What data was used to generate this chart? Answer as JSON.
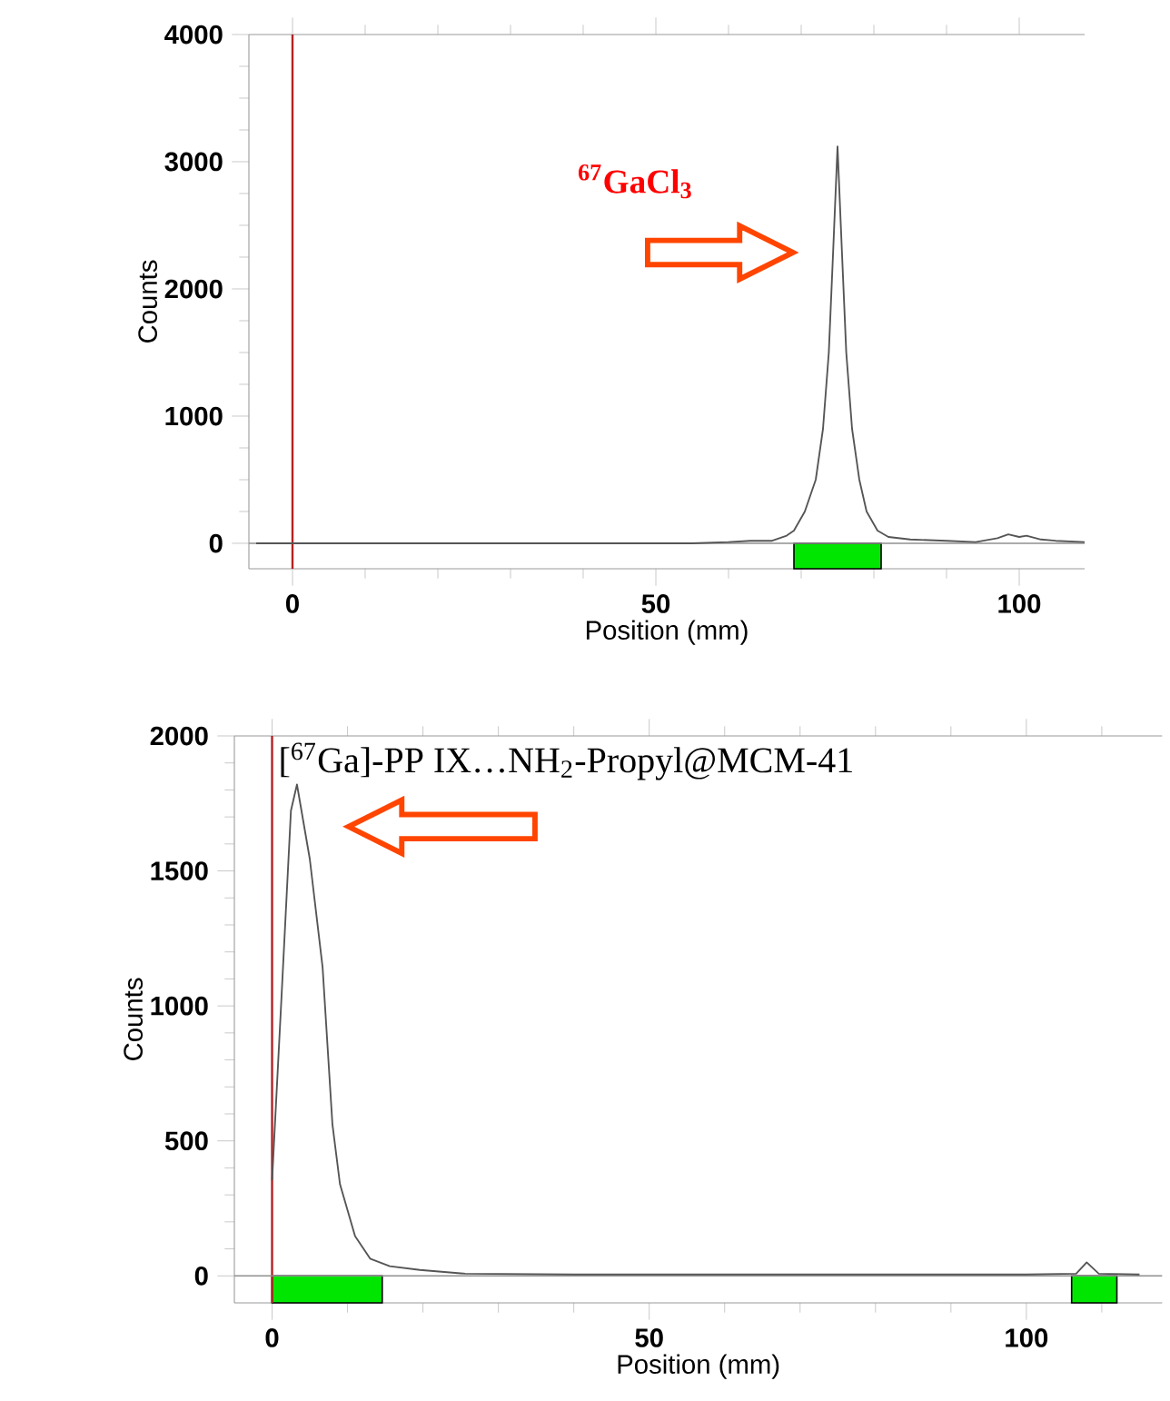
{
  "chart_data": [
    {
      "type": "line",
      "xlabel": "Position (mm)",
      "ylabel": "Counts",
      "annotations": [
        "$^{67}$GaCl$_{3}$"
      ],
      "xlim": [
        -6,
        109
      ],
      "ylim": [
        -200,
        4000
      ],
      "xticks": [
        0,
        {
          "value": 10,
          "label": null
        },
        {
          "value": 20,
          "label": null
        },
        {
          "value": 30,
          "label": null
        },
        {
          "value": 40,
          "label": null
        },
        50,
        {
          "value": 60,
          "label": null
        },
        {
          "value": 70,
          "label": null
        },
        {
          "value": 80,
          "label": null
        },
        {
          "value": 90,
          "label": null
        },
        100
      ],
      "yticks": [
        0,
        {
          "value": 250,
          "label": null
        },
        {
          "value": 500,
          "label": null
        },
        {
          "value": 750,
          "label": null
        },
        1000,
        {
          "value": 1250,
          "label": null
        },
        {
          "value": 1500,
          "label": null
        },
        {
          "value": 1750,
          "label": null
        },
        2000,
        {
          "value": 2250,
          "label": null
        },
        {
          "value": 2500,
          "label": null
        },
        {
          "value": 2750,
          "label": null
        },
        3000,
        {
          "value": 3250,
          "label": null
        },
        {
          "value": 3500,
          "label": null
        },
        {
          "value": 3750,
          "label": null
        },
        4000
      ],
      "color": "#555555",
      "x": [
        -5,
        0,
        10,
        20,
        30,
        40,
        50,
        55,
        60,
        63,
        66,
        68,
        69,
        70.5,
        72,
        73,
        73.8,
        74.4,
        75,
        75.6,
        76.2,
        77,
        78,
        79,
        80.5,
        82,
        85,
        90,
        94,
        97,
        98.5,
        100,
        101,
        103,
        105,
        109
      ],
      "values": [
        0,
        0,
        0,
        0,
        0,
        0,
        0,
        0,
        10,
        20,
        20,
        60,
        100,
        250,
        500,
        900,
        1500,
        2300,
        3120,
        2300,
        1500,
        900,
        500,
        250,
        100,
        50,
        30,
        20,
        10,
        40,
        70,
        50,
        60,
        30,
        20,
        10
      ],
      "ref_lines": [
        {
          "axis": "x",
          "value": 0,
          "color": "#b22222"
        },
        {
          "axis": "y",
          "value": 0,
          "color": "#909090"
        }
      ],
      "bands": [
        {
          "axis": "x",
          "from": 69,
          "to": 81,
          "color": "#00e600"
        }
      ]
    },
    {
      "type": "line",
      "xlabel": "Position (mm)",
      "ylabel": "Counts",
      "annotations": [
        "[$^{67}$Ga]-PP IX…NH$_{2}$-Propyl@MCM-41"
      ],
      "xlim": [
        -5,
        118
      ],
      "ylim": [
        -100,
        2000
      ],
      "xticks": [
        0,
        {
          "value": 10,
          "label": null
        },
        {
          "value": 20,
          "label": null
        },
        {
          "value": 30,
          "label": null
        },
        {
          "value": 40,
          "label": null
        },
        50,
        {
          "value": 60,
          "label": null
        },
        {
          "value": 70,
          "label": null
        },
        {
          "value": 80,
          "label": null
        },
        {
          "value": 90,
          "label": null
        },
        100,
        {
          "value": 110,
          "label": null
        }
      ],
      "yticks": [
        0,
        {
          "value": 100,
          "label": null
        },
        {
          "value": 200,
          "label": null
        },
        {
          "value": 300,
          "label": null
        },
        {
          "value": 400,
          "label": null
        },
        500,
        {
          "value": 600,
          "label": null
        },
        {
          "value": 700,
          "label": null
        },
        {
          "value": 800,
          "label": null
        },
        {
          "value": 900,
          "label": null
        },
        1000,
        {
          "value": 1100,
          "label": null
        },
        {
          "value": 1200,
          "label": null
        },
        {
          "value": 1300,
          "label": null
        },
        {
          "value": 1400,
          "label": null
        },
        1500,
        {
          "value": 1600,
          "label": null
        },
        {
          "value": 1700,
          "label": null
        },
        {
          "value": 1800,
          "label": null
        },
        {
          "value": 1900,
          "label": null
        },
        2000
      ],
      "color": "#555555",
      "x": [
        0,
        1.3,
        2.5,
        3.3,
        5,
        6.7,
        8,
        9,
        11,
        13,
        15.6,
        19.6,
        25.6,
        40,
        60,
        80,
        100,
        106.6,
        108,
        109.6,
        115
      ],
      "values": [
        354,
        1060,
        1723,
        1820,
        1544,
        1142,
        562,
        340,
        147,
        64,
        36,
        22,
        8,
        5,
        5,
        5,
        5,
        8,
        50,
        8,
        5
      ],
      "ref_lines": [
        {
          "axis": "x",
          "value": 0,
          "color": "#b22222"
        },
        {
          "axis": "y",
          "value": 0,
          "color": "#909090"
        }
      ],
      "bands": [
        {
          "axis": "x",
          "from": 0,
          "to": 14.6,
          "color": "#00e600"
        },
        {
          "axis": "x",
          "from": 106,
          "to": 112,
          "color": "#00e600"
        }
      ]
    }
  ]
}
